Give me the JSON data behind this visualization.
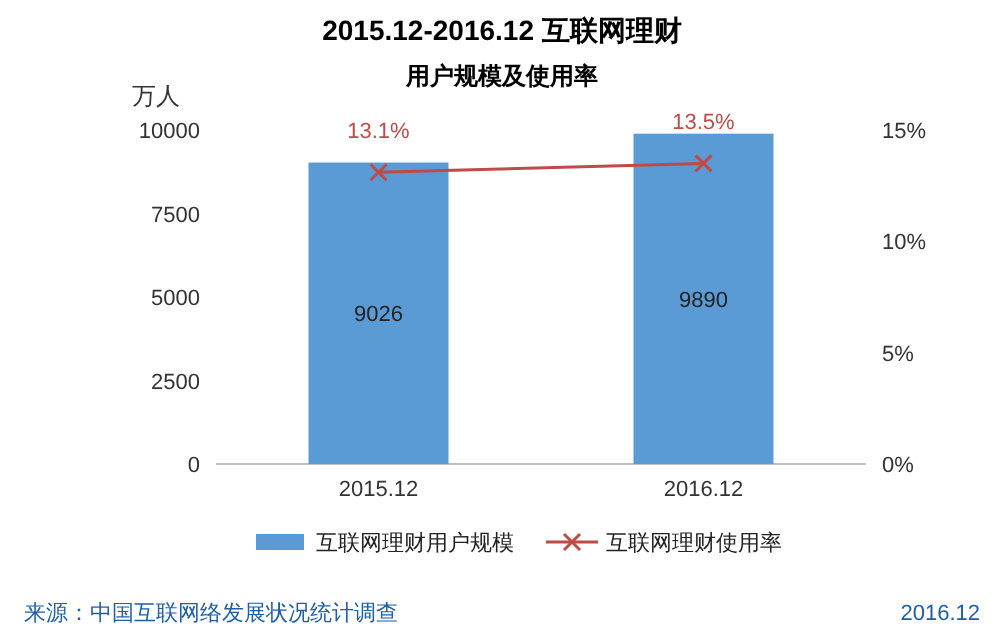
{
  "chart_data": {
    "type": "bar",
    "title": "2015.12-2016.12 互联网理财",
    "subtitle": "用户规模及使用率",
    "ylabel": "万人",
    "categories": [
      "2015.12",
      "2016.12"
    ],
    "series": [
      {
        "name": "互联网理财用户规模",
        "color": "#5b9bd5",
        "values": [
          9026,
          9890
        ],
        "value_labels": [
          "9026",
          "9890"
        ]
      },
      {
        "name": "互联网理财使用率",
        "type": "line",
        "axis": "y2",
        "color": "#be4b48",
        "values": [
          13.1,
          13.5
        ],
        "value_labels": [
          "13.1%",
          "13.5%"
        ],
        "marker": "cross"
      }
    ],
    "ylim": [
      0,
      10000
    ],
    "yticks": [
      0,
      2500,
      5000,
      7500,
      10000
    ],
    "y2lim": [
      0,
      15
    ],
    "y2ticks": [
      {
        "value": 0,
        "label": "0%"
      },
      {
        "value": 5,
        "label": "5%"
      },
      {
        "value": 10,
        "label": "10%"
      },
      {
        "value": 15,
        "label": "15%"
      }
    ],
    "legend": "bottom",
    "grid": false,
    "annotations": [
      "来源：中国互联网络发展状况统计调查",
      "2016.12"
    ]
  }
}
